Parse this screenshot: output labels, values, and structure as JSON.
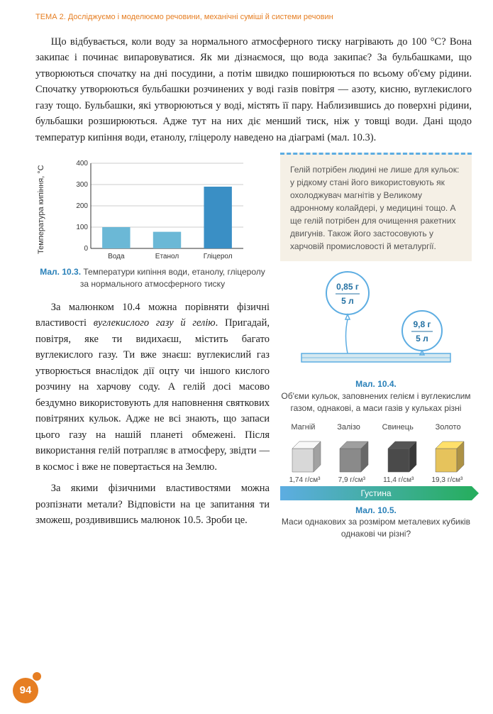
{
  "header": "ТЕМА 2. Досліджуємо і моделюємо речовини, механічні суміші й системи речовин",
  "para1": "Що відбувається, коли воду за нормального атмосферного тиску нагрівають до 100 °С? Вона закипає і починає випаровуватися. Як ми дізнаємося, що вода закипає? За бульбашками, що утворюються спочатку на дні посудини, а потім швидко поширюються по всьому об'єму рідини. Спочатку утворюються бульбашки розчинених у воді газів повітря — азоту, кисню, вуглекислого газу тощо. Бульбашки, які утворюються у воді, містять її пару. Наблизившись до поверхні рідини, бульбашки розширюються. Адже тут на них діє менший тиск, ніж у товщі води. Дані щодо температур кипіння води, етанолу, гліцеролу наведено на діаграмі (мал. 10.3).",
  "chart": {
    "type": "bar",
    "y_label": "Температура\nкипіння, °С",
    "ylim": [
      0,
      400
    ],
    "yticks": [
      0,
      100,
      200,
      300,
      400
    ],
    "categories": [
      "Вода",
      "Етанол",
      "Гліцерол"
    ],
    "values": [
      100,
      78,
      290
    ],
    "bar_colors": [
      "#6bb8d6",
      "#6bb8d6",
      "#3a8fc5"
    ],
    "grid_color": "#999",
    "fig_label": "Мал. 10.3.",
    "caption": "Температури кипіння води, етанолу, гліцеролу за нормального атмосферного тиску"
  },
  "info_box": "Гелій потрібен людині не лише для кульок: у рідкому стані його використовують як охолоджувач магнітів у Великому адронному колайдері, у медицині тощо. А ще гелій потрібен для очищення ракетних двигунів. Також його застосовують у харчовій промисловості й металургії.",
  "para2_a": "За малюнком 10.4 можна порівняти фізичні властивості ",
  "para2_italic": "вуглекислого газу й гелію",
  "para2_b": ". Пригадай, повітря, яке ти видихаєш, містить багато вуглекислого газу. Ти вже знаєш: вуглекислий газ утворюється внаслідок дії оцту чи іншого кислого розчину на харчову соду. А гелій досі масово бездумно використовують для наповнення святкових повітряних кульок. Адже не всі знають, що запаси цього газу на нашій планеті обмежені. Після використання гелій потрапляє в атмосферу, звідти — в космос і вже не повертається на Землю.",
  "para3": "За якими фізичними властивостями можна розпізнати метали? Відповісти на це запитання ти зможеш, роздивившись малюнок 10.5. Зроби це.",
  "balloons": {
    "left": {
      "mass": "0,85 г",
      "volume": "5 л",
      "color": "#5dade2"
    },
    "right": {
      "mass": "9,8 г",
      "volume": "5 л",
      "color": "#5dade2"
    },
    "fig_label": "Мал. 10.4.",
    "caption": "Об'єми кульок, заповнених гелієм і вуглекислим газом, однакові, а маси газів у кульках різні"
  },
  "cubes": {
    "labels": [
      "Магній",
      "Залізо",
      "Свинець",
      "Золото"
    ],
    "colors": [
      "#d8d8d8",
      "#8a8a8a",
      "#4a4a4a",
      "#e6c35c"
    ],
    "densities": [
      "1,74 г/см³",
      "7,9 г/см³",
      "11,4 г/см³",
      "19,3 г/см³"
    ],
    "bar_label": "Густина",
    "fig_label": "Мал. 10.5.",
    "caption": "Маси однакових за розміром металевих кубиків однакові чи різні?"
  },
  "page_number": "94"
}
